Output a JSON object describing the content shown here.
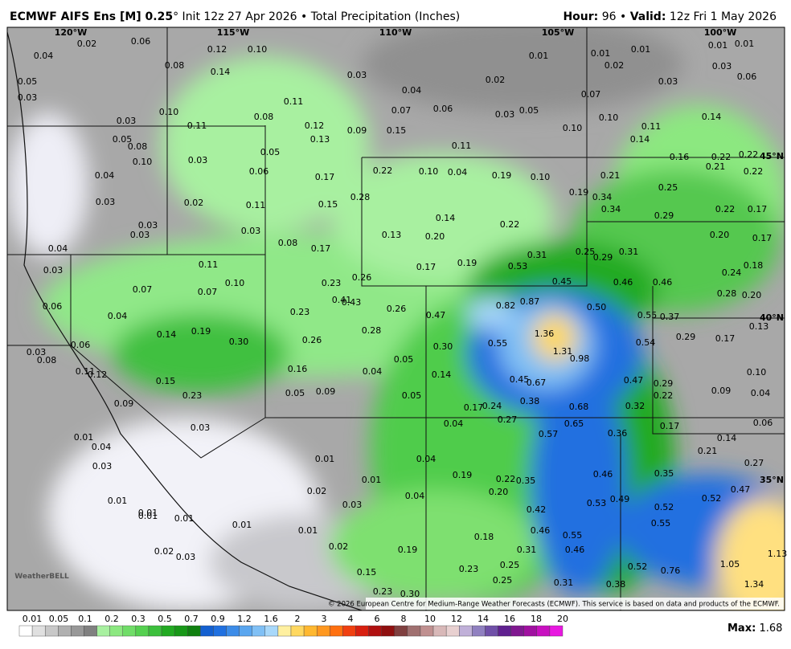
{
  "header": {
    "title_bold": "ECMWF AIFS Ens [M] 0.25",
    "title_rest": "° Init 12z 27 Apr 2026 • Total Precipitation (Inches)",
    "hour_label": "Hour:",
    "hour": "96 •",
    "valid_label": "Valid:",
    "valid": "12z Fri 1 May 2026"
  },
  "map": {
    "lon_labels": [
      "120°W",
      "115°W",
      "110°W",
      "105°W",
      "100°W"
    ],
    "lat_labels": [
      "45°N",
      "40°N",
      "35°N"
    ],
    "labels": [
      "0.06",
      "0.02",
      "0.04",
      "0.12",
      "0.10",
      "0.08",
      "0.14",
      "0.03",
      "0.05",
      "0.03",
      "0.01",
      "0.01",
      "0.01",
      "0.01",
      "0.01",
      "0.02",
      "0.03",
      "0.02",
      "0.04",
      "0.03",
      "0.06",
      "0.07",
      "0.11",
      "0.07",
      "0.06",
      "0.03",
      "0.05",
      "0.10",
      "0.08",
      "0.03",
      "0.11",
      "0.12",
      "0.09",
      "0.15",
      "0.10",
      "0.10",
      "0.11",
      "0.14",
      "0.05",
      "0.08",
      "0.13",
      "0.14",
      "0.11",
      "0.05",
      "0.10",
      "0.03",
      "0.16",
      "0.22",
      "0.22",
      "0.21",
      "0.22",
      "0.06",
      "0.04",
      "0.17",
      "0.22",
      "0.10",
      "0.04",
      "0.19",
      "0.10",
      "0.21",
      "0.25",
      "0.19",
      "0.34",
      "0.28",
      "0.03",
      "0.02",
      "0.11",
      "0.15",
      "0.34",
      "0.29",
      "0.22",
      "0.17",
      "0.14",
      "0.03",
      "0.03",
      "0.03",
      "0.22",
      "0.13",
      "0.20",
      "0.20",
      "0.17",
      "0.04",
      "0.08",
      "0.17",
      "0.31",
      "0.25",
      "0.29",
      "0.31",
      "0.03",
      "0.11",
      "0.17",
      "0.19",
      "0.53",
      "0.18",
      "0.24",
      "0.10",
      "0.23",
      "0.26",
      "0.45",
      "0.46",
      "0.46",
      "0.07",
      "0.07",
      "0.28",
      "0.20",
      "0.41",
      "0.43",
      "0.06",
      "0.82",
      "0.87",
      "0.50",
      "0.04",
      "0.23",
      "0.26",
      "0.47",
      "0.55",
      "0.37",
      "0.13",
      "0.14",
      "0.19",
      "0.30",
      "0.26",
      "0.28",
      "1.36",
      "0.55",
      "0.54",
      "0.29",
      "0.17",
      "0.03",
      "0.06",
      "0.08",
      "0.30",
      "1.31",
      "0.98",
      "0.05",
      "0.16",
      "0.04",
      "0.11",
      "0.12",
      "0.14",
      "0.45",
      "0.67",
      "0.47",
      "0.29",
      "0.10",
      "0.15",
      "0.23",
      "0.05",
      "0.09",
      "0.05",
      "0.38",
      "0.22",
      "0.09",
      "0.04",
      "0.09",
      "0.17",
      "0.24",
      "0.68",
      "0.32",
      "0.27",
      "0.04",
      "0.65",
      "0.17",
      "0.03",
      "0.06",
      "0.57",
      "0.36",
      "0.14",
      "0.01",
      "0.04",
      "0.21",
      "0.01",
      "0.04",
      "0.03",
      "0.27",
      "0.46",
      "0.35",
      "0.19",
      "0.22",
      "0.35",
      "0.01",
      "0.47",
      "0.02",
      "0.20",
      "0.52",
      "0.49",
      "0.04",
      "0.01",
      "0.03",
      "0.53",
      "0.52",
      "0.42",
      "0.01",
      "0.01",
      "0.01",
      "0.55",
      "0.01",
      "0.01",
      "0.46",
      "0.55",
      "0.18",
      "0.02",
      "0.19",
      "0.31",
      "0.46",
      "0.02",
      "0.03",
      "1.13",
      "0.25",
      "0.23",
      "0.52",
      "0.76",
      "1.05",
      "0.15",
      "0.25",
      "0.31",
      "0.38",
      "1.34",
      "0.23",
      "0.30"
    ],
    "copyright": "© 2026 European Centre for Medium-Range Weather Forecasts (ECMWF). This service is based on data and products of the ECMWF.",
    "logo": "WeatherBELL"
  },
  "colorbar": {
    "labels": [
      "0.01",
      "0.05",
      "0.1",
      "0.2",
      "0.3",
      "0.5",
      "0.7",
      "0.9",
      "1.2",
      "1.6",
      "2",
      "3",
      "4",
      "6",
      "8",
      "10",
      "12",
      "14",
      "16",
      "18",
      "20"
    ],
    "colors": [
      "#ffffff",
      "#e0e0e0",
      "#c8c8c8",
      "#b0b0b0",
      "#989898",
      "#808080",
      "#a8f0a0",
      "#8ce880",
      "#70dd68",
      "#55d050",
      "#3cc03c",
      "#22aa22",
      "#189818",
      "#108010",
      "#1460d0",
      "#2070e0",
      "#3c8ce8",
      "#5aa6ef",
      "#80c0f5",
      "#a8d8fa",
      "#fff0a0",
      "#ffd860",
      "#ffb830",
      "#ff9820",
      "#ff7010",
      "#f04010",
      "#d82010",
      "#b01010",
      "#901010",
      "#804040",
      "#a07070",
      "#c09090",
      "#d8b8b8",
      "#e8d0d0",
      "#c0b0d8",
      "#9080c0",
      "#7050a8",
      "#602090",
      "#801890",
      "#a010a0",
      "#c810c0",
      "#e818e0"
    ]
  },
  "footer": {
    "max_label": "Max:",
    "max_value": "1.68"
  }
}
